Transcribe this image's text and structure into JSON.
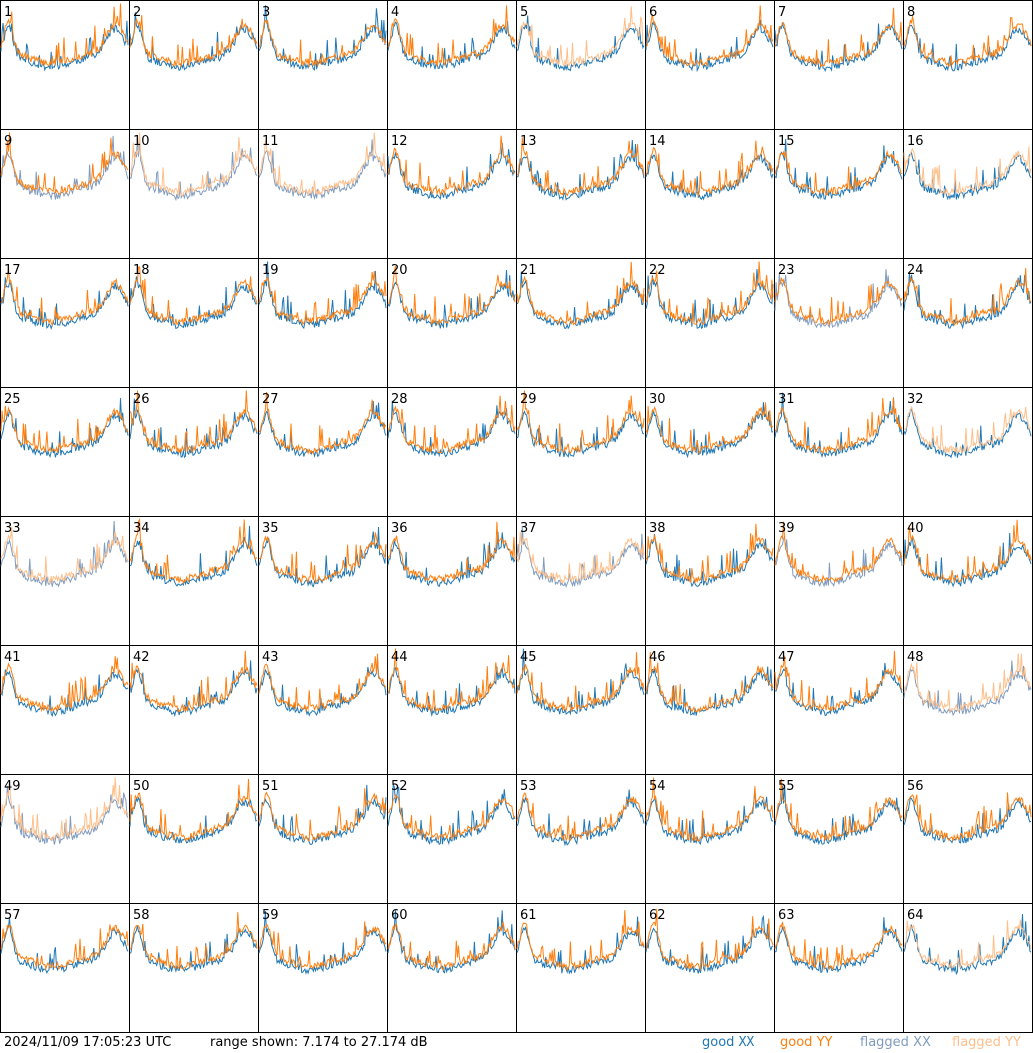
{
  "chart_data": {
    "type": "line",
    "title": "",
    "panel_labels": [
      "1",
      "2",
      "3",
      "4",
      "5",
      "6",
      "7",
      "8",
      "9",
      "10",
      "11",
      "12",
      "13",
      "14",
      "15",
      "16",
      "17",
      "18",
      "19",
      "20",
      "21",
      "22",
      "23",
      "24",
      "25",
      "26",
      "27",
      "28",
      "29",
      "30",
      "31",
      "32",
      "33",
      "34",
      "35",
      "36",
      "37",
      "38",
      "39",
      "40",
      "41",
      "42",
      "43",
      "44",
      "45",
      "46",
      "47",
      "48",
      "49",
      "50",
      "51",
      "52",
      "53",
      "54",
      "55",
      "56",
      "57",
      "58",
      "59",
      "60",
      "61",
      "62",
      "63",
      "64"
    ],
    "panels": "64 small-multiple spectra, one per antenna, drawn in an 8x8 grid",
    "ylim_db": [
      7.174,
      27.174
    ],
    "grid": false,
    "legend_placement": "bottom-right",
    "series": [
      {
        "name": "good XX",
        "color": "#1f77b4"
      },
      {
        "name": "good YY",
        "color": "#ff7f0e"
      },
      {
        "name": "flagged XX",
        "color": "#7f9cbf"
      },
      {
        "name": "flagged YY",
        "color": "#ffbf8a"
      }
    ],
    "flagged": {
      "xx": [
        "9",
        "23",
        "39"
      ],
      "yy": [
        "5",
        "16",
        "32",
        "64"
      ],
      "both": [
        "10",
        "11",
        "33",
        "37",
        "48",
        "49"
      ]
    }
  },
  "footer": {
    "timestamp": "2024/11/09 17:05:23 UTC",
    "range": "range shown: 7.174 to 27.174 dB"
  },
  "legend": {
    "good_label": "good",
    "flagged_label": "flagged",
    "xx": "XX",
    "yy": "YY"
  },
  "colors": {
    "good_xx": "#1f77b4",
    "good_yy": "#ff7f0e",
    "flagged_xx": "#7f9cbf",
    "flagged_yy": "#ffbf8a"
  }
}
